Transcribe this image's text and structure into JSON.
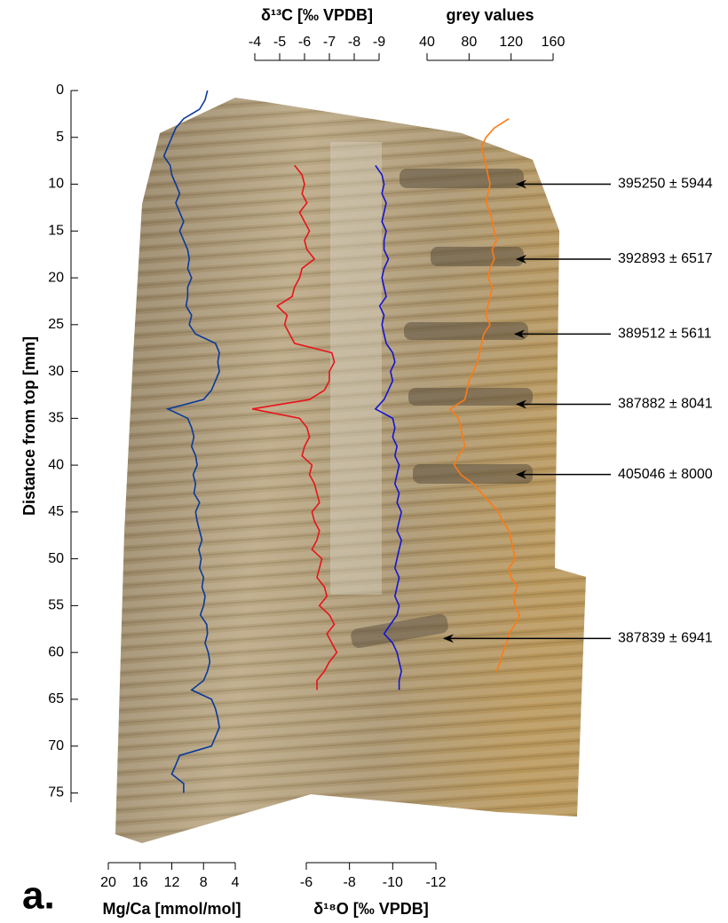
{
  "chart_data": {
    "type": "line",
    "panel_label": "a.",
    "ylabel": "Distance from top [mm]",
    "ylim": [
      0,
      76
    ],
    "yticks": [
      0,
      5,
      10,
      15,
      20,
      25,
      30,
      35,
      40,
      45,
      50,
      55,
      60,
      65,
      70,
      75
    ],
    "value_axes": [
      {
        "label": "δ¹³C [‰ VPDB]",
        "xlim": [
          -4,
          -9
        ],
        "xticks": [
          -4,
          -5,
          -6,
          -7,
          -8,
          -9
        ]
      },
      {
        "label": "grey values",
        "xlim": [
          40,
          160
        ],
        "xticks": [
          40,
          80,
          120,
          160
        ]
      },
      {
        "label": "Mg/Ca [mmol/mol]",
        "xlim": [
          20,
          4
        ],
        "xticks": [
          20,
          16,
          12,
          8,
          4
        ]
      },
      {
        "label": "δ¹⁸O [‰ VPDB]",
        "xlim": [
          -6,
          -12
        ],
        "xticks": [
          -6,
          -8,
          -10,
          -12
        ]
      }
    ],
    "x": [
      0,
      1,
      2,
      3,
      4,
      5,
      6,
      7,
      8,
      9,
      10,
      11,
      12,
      13,
      14,
      15,
      16,
      17,
      18,
      19,
      20,
      21,
      22,
      23,
      24,
      25,
      26,
      27,
      28,
      29,
      30,
      31,
      32,
      33,
      34,
      35,
      36,
      37,
      38,
      39,
      40,
      41,
      42,
      43,
      44,
      45,
      46,
      47,
      48,
      49,
      50,
      51,
      52,
      53,
      54,
      55,
      56,
      57,
      58,
      59,
      60,
      61,
      62,
      63,
      64,
      65,
      66,
      67,
      68,
      69,
      70,
      71,
      72,
      73,
      74,
      75
    ],
    "series": [
      {
        "axis": 2,
        "color": "#0a3a9c",
        "values": [
          7.5,
          7.8,
          8.5,
          10.5,
          11.5,
          12,
          12.5,
          13,
          12.2,
          12,
          11.5,
          11,
          11.5,
          11,
          10.5,
          11,
          10.5,
          10,
          9.8,
          10,
          9.5,
          10,
          10,
          10.2,
          9.5,
          9.8,
          9,
          6.5,
          6,
          6.2,
          6,
          6.5,
          7,
          8,
          12.5,
          10,
          9.5,
          9.2,
          9.5,
          9,
          8.8,
          9.3,
          9,
          9.2,
          8.5,
          9,
          8.8,
          8.5,
          8.2,
          8.6,
          8.3,
          8.5,
          8,
          8.2,
          7.8,
          8,
          8.4,
          7.6,
          7.5,
          7.8,
          7.4,
          7.2,
          7.5,
          8,
          9.5,
          7,
          6.5,
          6.2,
          6,
          6.5,
          7,
          11,
          11.5,
          12,
          10.5,
          10.5
        ]
      },
      {
        "axis": 0,
        "color": "#e8141a",
        "values": [
          null,
          null,
          null,
          null,
          null,
          null,
          null,
          null,
          -5.6,
          -5.9,
          -6,
          -5.9,
          -6.1,
          -5.8,
          -6,
          -6.2,
          -6,
          -6.1,
          -6.4,
          -5.9,
          -5.8,
          -5.6,
          -5.5,
          -4.9,
          -5.3,
          -5.2,
          -5.4,
          -5.6,
          -7.1,
          -7.2,
          -7,
          -7,
          -6.8,
          -6.2,
          -3.9,
          -5.8,
          -6.1,
          -6.2,
          -6,
          -5.9,
          -6.3,
          -6.2,
          -6.4,
          -6.5,
          -6.6,
          -6.3,
          -6.4,
          -6.6,
          -6.5,
          -6.3,
          -6.7,
          -6.6,
          -6.5,
          -6.8,
          -6.9,
          -6.6,
          -7,
          -7.2,
          -6.9,
          -7.1,
          -7.3,
          -7,
          -6.8,
          -6.5,
          -6.5,
          null,
          null,
          null,
          null,
          null,
          null,
          null,
          null,
          null,
          null,
          null
        ]
      },
      {
        "axis": 3,
        "color": "#1414d4",
        "values": [
          null,
          null,
          null,
          null,
          null,
          null,
          null,
          null,
          -9.2,
          -9.5,
          -9.6,
          -9.5,
          -9.7,
          -9.6,
          -9.5,
          -9.7,
          -9.6,
          -9.6,
          -9.8,
          -9.6,
          -9.5,
          -9.6,
          -9.7,
          -9.4,
          -9.6,
          -9.5,
          -9.6,
          -9.7,
          -10,
          -10.1,
          -9.9,
          -10,
          -9.8,
          -9.6,
          -9.2,
          -10,
          -10.1,
          -10,
          -10.2,
          -10.1,
          -10.3,
          -10.2,
          -10.1,
          -10.3,
          -10.2,
          -10.4,
          -10.3,
          -10.2,
          -10.4,
          -10.3,
          -10.2,
          -10.1,
          -10.3,
          -10.2,
          -10.1,
          -10.3,
          -10.2,
          -9.9,
          -9.6,
          -10,
          -10.2,
          -10.3,
          -10.4,
          -10.3,
          -10.3,
          null,
          null,
          null,
          null,
          null,
          null,
          null,
          null,
          null,
          null,
          null
        ]
      },
      {
        "axis": 1,
        "color": "#ff7a12",
        "values": [
          null,
          null,
          null,
          118,
          104,
          96,
          92,
          94,
          96,
          98,
          100,
          98,
          96,
          100,
          102,
          104,
          106,
          102,
          104,
          100,
          98,
          102,
          100,
          98,
          96,
          100,
          94,
          92,
          90,
          88,
          84,
          80,
          78,
          76,
          62,
          70,
          72,
          74,
          76,
          70,
          66,
          72,
          84,
          92,
          100,
          108,
          112,
          118,
          120,
          122,
          124,
          118,
          120,
          126,
          122,
          124,
          128,
          124,
          118,
          116,
          112,
          110,
          106,
          null,
          null,
          null,
          null,
          null,
          null,
          null,
          null,
          null,
          null,
          null,
          null,
          null
        ]
      }
    ],
    "annotations": [
      {
        "text": "395250 ± 5944",
        "depth": 10
      },
      {
        "text": "392893 ± 6517",
        "depth": 18
      },
      {
        "text": "389512 ± 5611",
        "depth": 26
      },
      {
        "text": "387882 ± 8041",
        "depth": 33.5
      },
      {
        "text": "405046 ± 8000",
        "depth": 41
      },
      {
        "text": "387839 ± 6941",
        "depth": 58.5
      }
    ]
  }
}
